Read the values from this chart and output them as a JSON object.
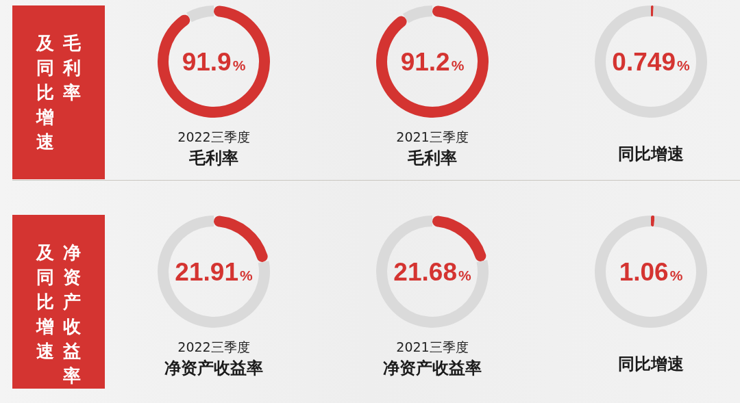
{
  "chart_data": [
    {
      "type": "other",
      "annotations": [
        "毛利率",
        "及同比增速"
      ]
    },
    {
      "type": "donut",
      "subtitle": "2022三季度",
      "title": "毛利率",
      "categories": [
        null,
        null
      ],
      "values": [
        91.9,
        8.1
      ],
      "colors": [
        "#d43431",
        "#dadada"
      ],
      "annotations": [
        "91.9%"
      ]
    },
    {
      "type": "donut",
      "subtitle": "2021三季度",
      "title": "毛利率",
      "categories": [
        null,
        null
      ],
      "values": [
        91.2,
        8.8
      ],
      "colors": [
        "#d43431",
        "#dadada"
      ],
      "annotations": [
        "91.2%"
      ]
    },
    {
      "type": "donut",
      "title": "同比增速",
      "categories": [
        null,
        null
      ],
      "values": [
        0.749,
        99.251
      ],
      "colors": [
        "#d43431",
        "#dadada"
      ],
      "annotations": [
        "0.749%"
      ]
    },
    {
      "type": "other",
      "annotations": [
        "净资产收益率",
        "及同比增速"
      ]
    },
    {
      "type": "donut",
      "subtitle": "2022三季度",
      "title": "净资产收益率",
      "categories": [
        null,
        null
      ],
      "values": [
        21.91,
        78.09
      ],
      "colors": [
        "#d43431",
        "#dadada"
      ],
      "annotations": [
        "21.91%"
      ]
    },
    {
      "type": "donut",
      "subtitle": "2021三季度",
      "title": "净资产收益率",
      "categories": [
        null,
        null
      ],
      "values": [
        21.68,
        78.32
      ],
      "colors": [
        "#d43431",
        "#dadada"
      ],
      "annotations": [
        "21.68%"
      ]
    },
    {
      "type": "donut",
      "title": "同比增速",
      "categories": [
        null,
        null
      ],
      "values": [
        1.06,
        98.94
      ],
      "colors": [
        "#d43431",
        "#dadada"
      ],
      "annotations": [
        "1.06%"
      ]
    }
  ]
}
